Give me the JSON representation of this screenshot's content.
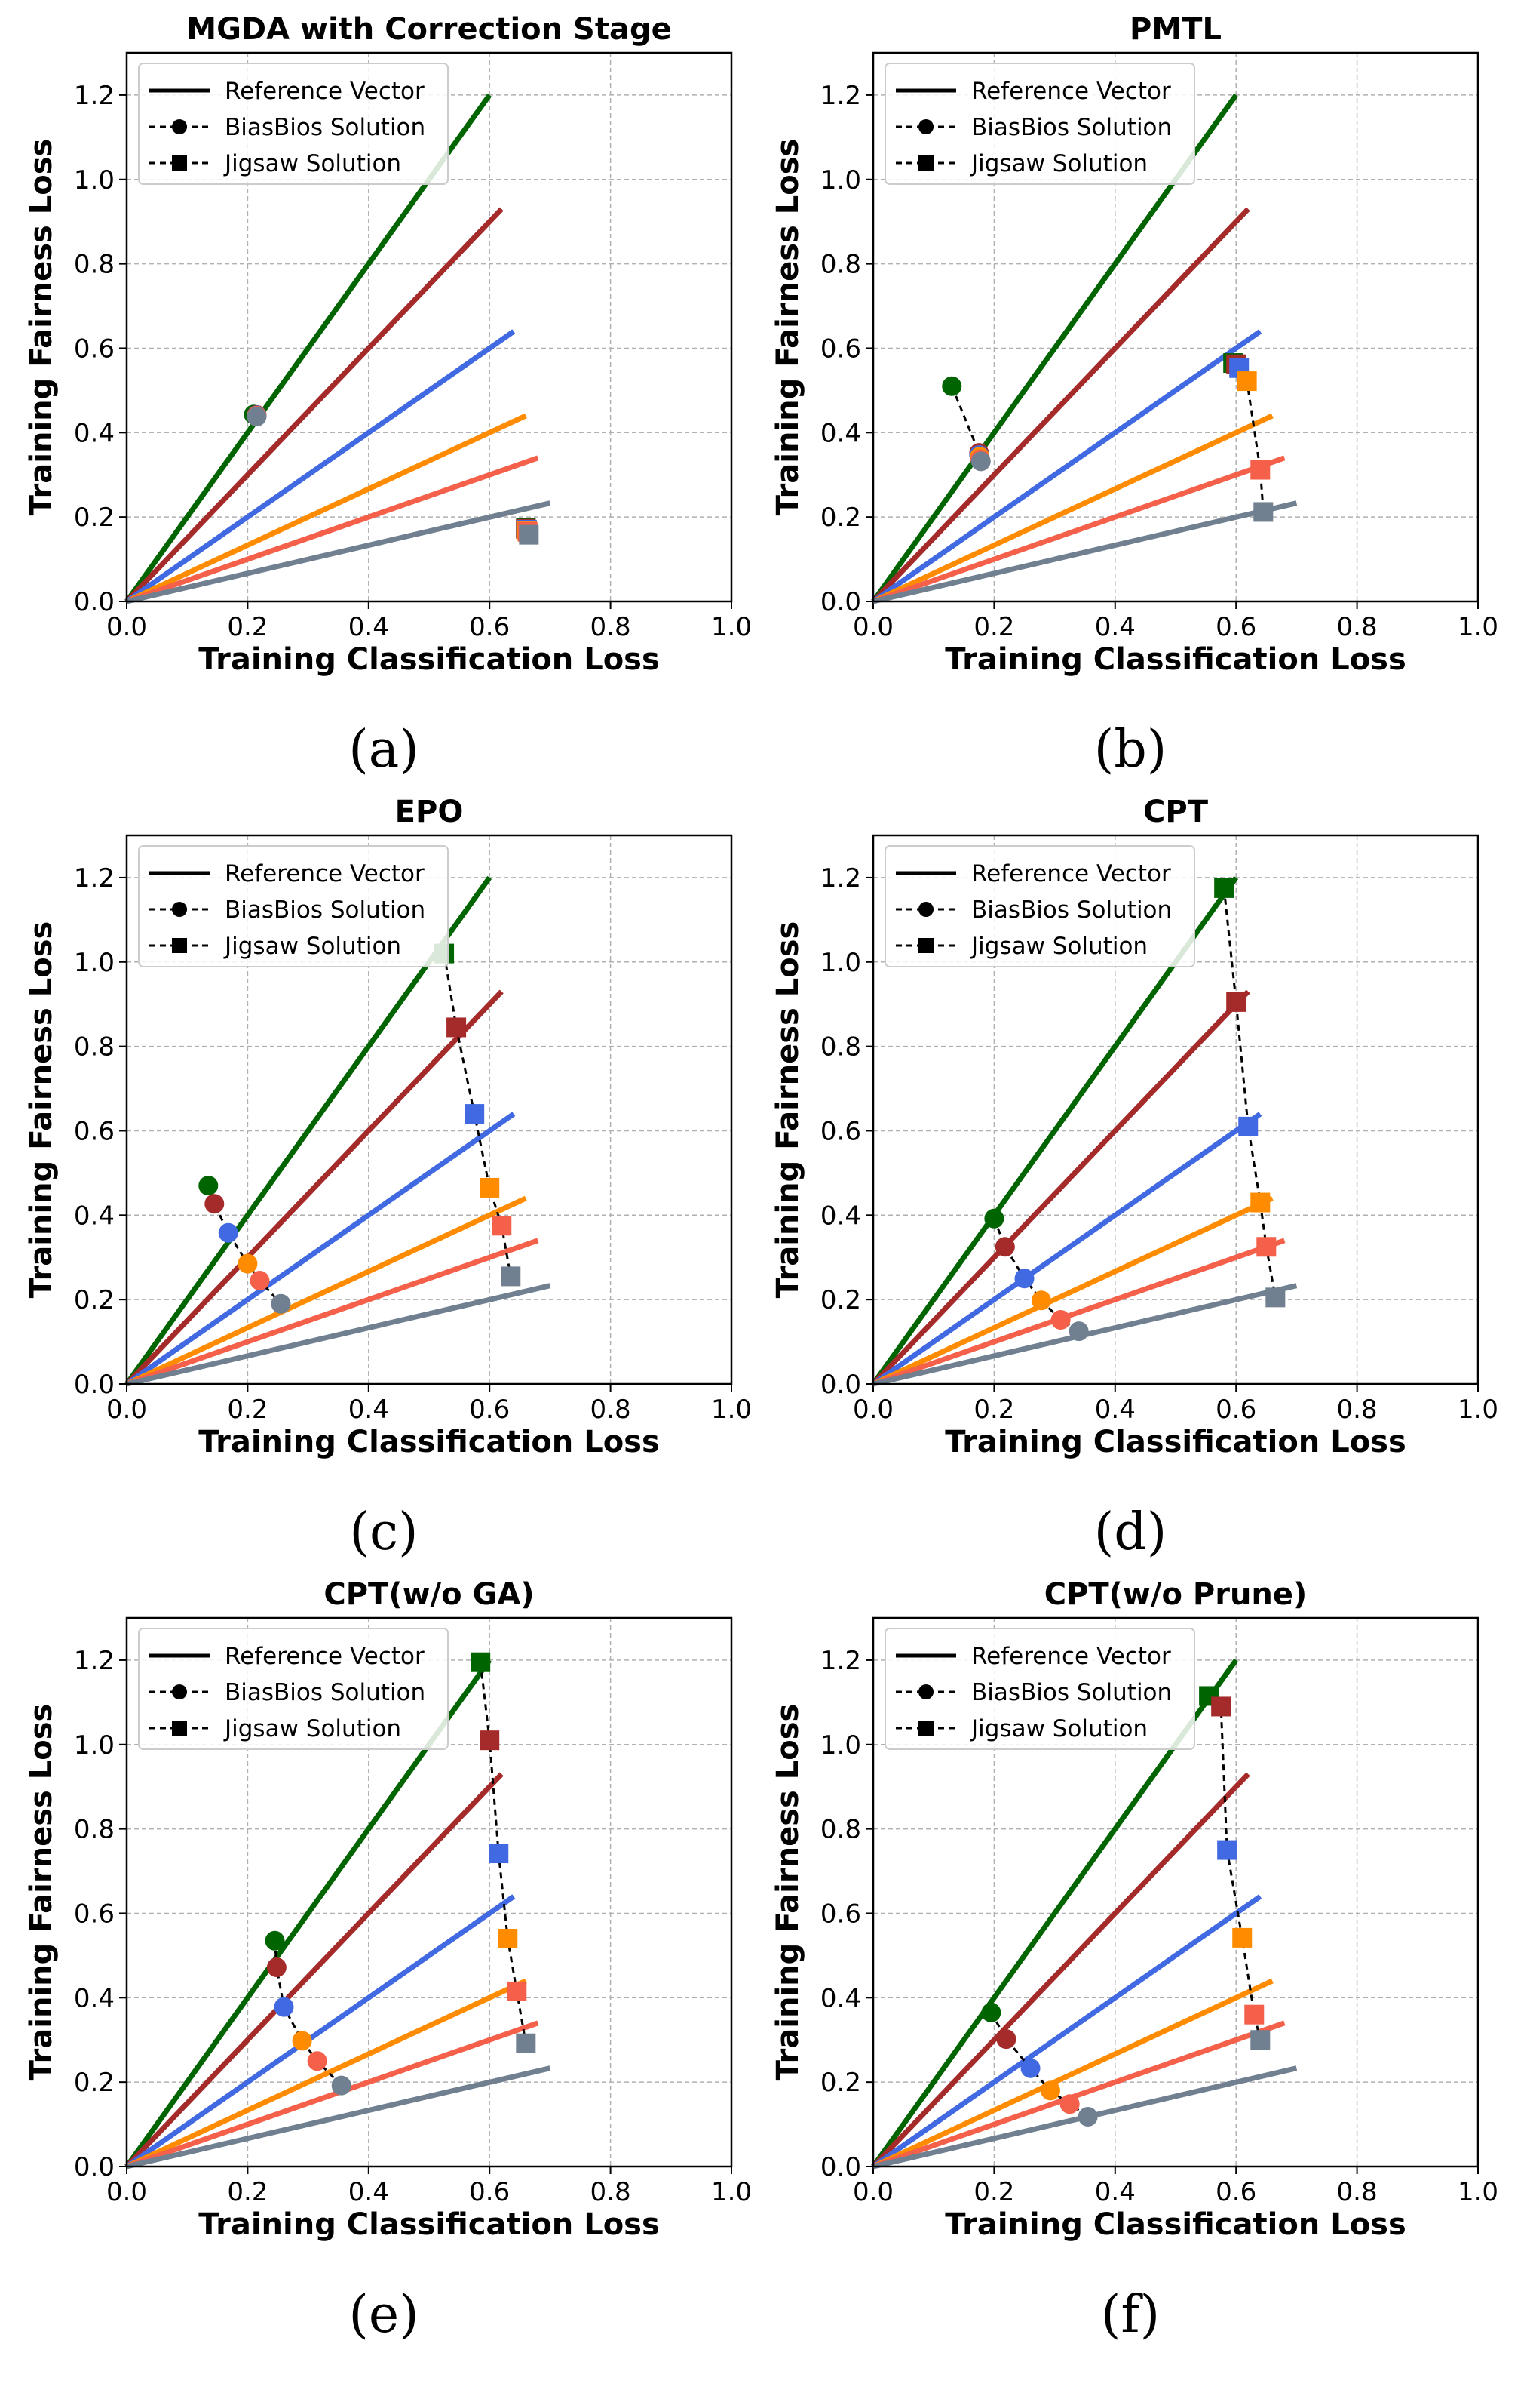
{
  "colors": {
    "reference_vectors": [
      "#006400",
      "#a52a2a",
      "#4169e1",
      "#ff8c00",
      "#f4604a",
      "#708090"
    ],
    "grid": "#b0b0b0",
    "axis": "#000000",
    "connector": "#000000"
  },
  "common": {
    "xlabel": "Training Classification Loss",
    "ylabel": "Training Fairness Loss",
    "xlim": [
      0.0,
      1.0
    ],
    "ylim": [
      0.0,
      1.3
    ],
    "xticks": [
      "0.0",
      "0.2",
      "0.4",
      "0.6",
      "0.8",
      "1.0"
    ],
    "yticks": [
      "0.0",
      "0.2",
      "0.4",
      "0.6",
      "0.8",
      "1.0",
      "1.2"
    ],
    "legend": [
      "Reference Vector",
      "BiasBios Solution",
      "Jigsaw Solution"
    ],
    "reference_vector_endpoints": [
      [
        0.6,
        1.2
      ],
      [
        0.62,
        0.93
      ],
      [
        0.64,
        0.64
      ],
      [
        0.66,
        0.44
      ],
      [
        0.68,
        0.34
      ],
      [
        0.7,
        0.233
      ]
    ]
  },
  "chart_data": [
    {
      "type": "line+scatter",
      "title": "MGDA with Correction Stage",
      "caption": "(a)",
      "biasbios": [
        [
          0.21,
          0.443
        ],
        [
          0.215,
          0.442
        ],
        [
          0.215,
          0.441
        ],
        [
          0.215,
          0.44
        ],
        [
          0.215,
          0.44
        ],
        [
          0.215,
          0.438
        ]
      ],
      "jigsaw": [
        [
          0.66,
          0.175
        ],
        [
          0.66,
          0.172
        ],
        [
          0.662,
          0.17
        ],
        [
          0.662,
          0.168
        ],
        [
          0.663,
          0.165
        ],
        [
          0.665,
          0.158
        ]
      ]
    },
    {
      "type": "line+scatter",
      "title": "PMTL",
      "caption": "(b)",
      "biasbios": [
        [
          0.13,
          0.51
        ],
        [
          0.175,
          0.352
        ],
        [
          0.175,
          0.347
        ],
        [
          0.176,
          0.343
        ],
        [
          0.177,
          0.337
        ],
        [
          0.178,
          0.332
        ]
      ],
      "jigsaw": [
        [
          0.595,
          0.565
        ],
        [
          0.6,
          0.562
        ],
        [
          0.605,
          0.553
        ],
        [
          0.618,
          0.522
        ],
        [
          0.64,
          0.312
        ],
        [
          0.645,
          0.212
        ]
      ]
    },
    {
      "type": "line+scatter",
      "title": "EPO",
      "caption": "(c)",
      "biasbios": [
        [
          0.135,
          0.47
        ],
        [
          0.145,
          0.427
        ],
        [
          0.168,
          0.358
        ],
        [
          0.2,
          0.285
        ],
        [
          0.22,
          0.245
        ],
        [
          0.255,
          0.19
        ]
      ],
      "jigsaw": [
        [
          0.525,
          1.02
        ],
        [
          0.545,
          0.845
        ],
        [
          0.575,
          0.64
        ],
        [
          0.6,
          0.465
        ],
        [
          0.62,
          0.375
        ],
        [
          0.635,
          0.255
        ]
      ]
    },
    {
      "type": "line+scatter",
      "title": "CPT",
      "caption": "(d)",
      "biasbios": [
        [
          0.2,
          0.392
        ],
        [
          0.218,
          0.325
        ],
        [
          0.25,
          0.25
        ],
        [
          0.278,
          0.198
        ],
        [
          0.31,
          0.152
        ],
        [
          0.34,
          0.125
        ]
      ],
      "jigsaw": [
        [
          0.58,
          1.175
        ],
        [
          0.6,
          0.905
        ],
        [
          0.62,
          0.61
        ],
        [
          0.64,
          0.43
        ],
        [
          0.65,
          0.325
        ],
        [
          0.665,
          0.205
        ]
      ]
    },
    {
      "type": "line+scatter",
      "title": "CPT(w/o GA)",
      "caption": "(e)",
      "biasbios": [
        [
          0.245,
          0.535
        ],
        [
          0.248,
          0.472
        ],
        [
          0.26,
          0.378
        ],
        [
          0.29,
          0.298
        ],
        [
          0.315,
          0.25
        ],
        [
          0.355,
          0.192
        ]
      ],
      "jigsaw": [
        [
          0.585,
          1.195
        ],
        [
          0.6,
          1.01
        ],
        [
          0.615,
          0.742
        ],
        [
          0.63,
          0.54
        ],
        [
          0.645,
          0.415
        ],
        [
          0.66,
          0.292
        ]
      ]
    },
    {
      "type": "line+scatter",
      "title": "CPT(w/o Prune)",
      "caption": "(f)",
      "biasbios": [
        [
          0.195,
          0.365
        ],
        [
          0.22,
          0.302
        ],
        [
          0.26,
          0.233
        ],
        [
          0.293,
          0.18
        ],
        [
          0.325,
          0.148
        ],
        [
          0.355,
          0.118
        ]
      ],
      "jigsaw": [
        [
          0.555,
          1.115
        ],
        [
          0.575,
          1.09
        ],
        [
          0.585,
          0.75
        ],
        [
          0.61,
          0.542
        ],
        [
          0.63,
          0.36
        ],
        [
          0.64,
          0.3
        ]
      ]
    }
  ]
}
